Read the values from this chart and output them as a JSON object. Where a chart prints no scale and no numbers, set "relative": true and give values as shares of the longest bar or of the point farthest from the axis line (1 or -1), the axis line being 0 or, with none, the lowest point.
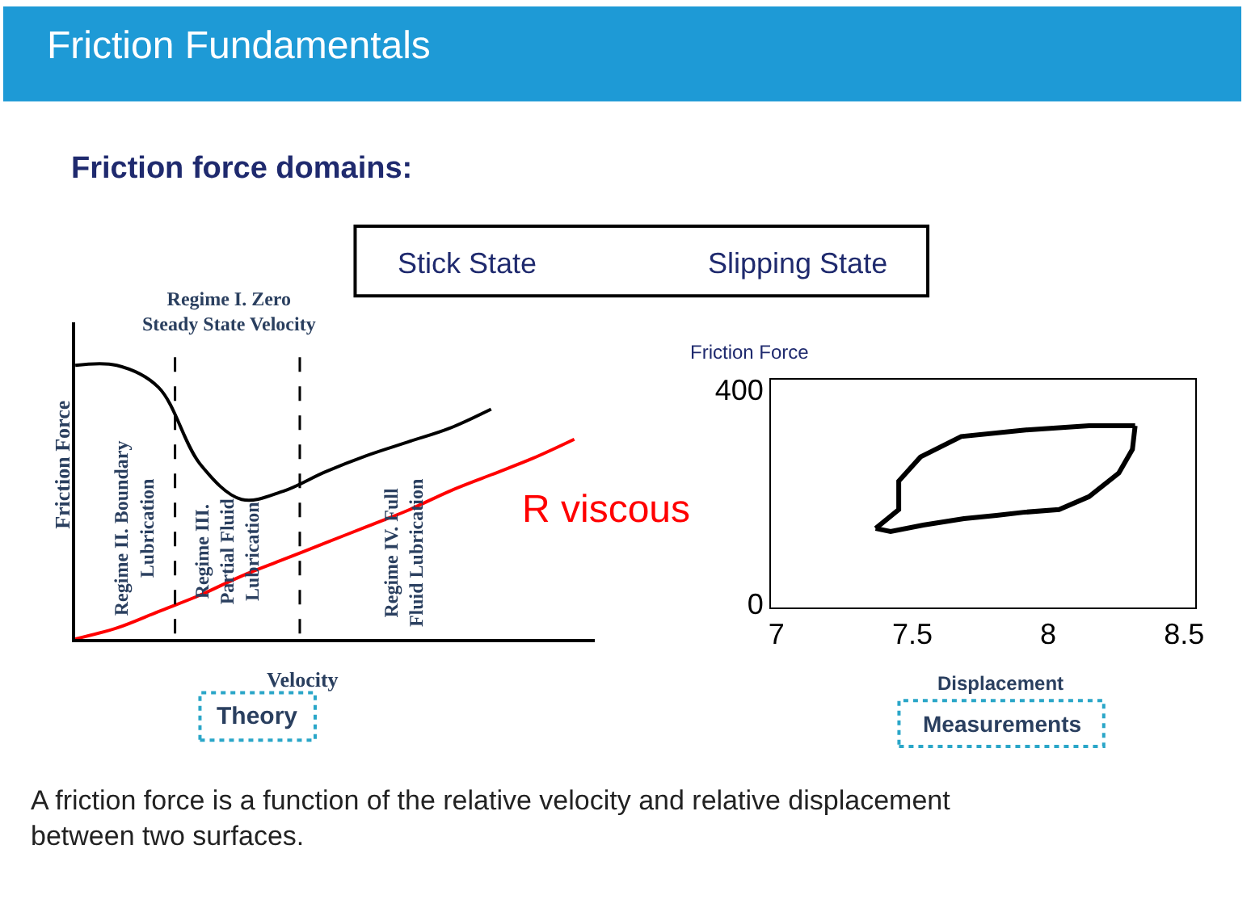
{
  "chart_data": [
    {
      "type": "line",
      "title": "Friction Fundamentals",
      "subtitle": "Friction force domains:",
      "xlabel": "Velocity",
      "ylabel": "Friction Force",
      "relative": true,
      "categories": [
        null,
        null,
        null,
        null,
        null,
        null,
        null,
        null,
        null,
        null,
        null,
        null,
        null
      ],
      "series": [
        {
          "color": "#000000",
          "values": [
            1,
            1,
            0.92,
            0.64,
            0.51,
            0.54,
            0.61,
            0.67,
            0.72,
            0.77,
            0.84,
            null,
            null
          ]
        },
        {
          "name": "R viscous",
          "color": "#ff0000",
          "values": [
            0,
            0.04,
            0.1,
            0.16,
            0.23,
            0.29,
            0.35,
            0.41,
            0.47,
            0.54,
            0.6,
            0.66,
            0.73
          ]
        }
      ],
      "line_style": "solid",
      "annotations": [
        "Regime I. Zero Steady State Velocity",
        "Regime II. Boundary Lubrication",
        "Regime III. Partial Fluid Lubrication",
        "Regime IV. Full Fluid Lubrication",
        "Stick State",
        "Slipping State",
        "Theory",
        "A friction force is a function of the relative velocity and relative displacement between two surfaces."
      ],
      "marker": "none"
    },
    {
      "type": "line",
      "xlabel": "Displacement",
      "ylabel": "Friction Force",
      "series": [
        {
          "color": "#000000",
          "x": [
            7.365,
            7.45,
            7.45,
            7.53,
            7.68,
            7.91,
            8.15,
            8.32
          ],
          "values": [
            141,
            176,
            229,
            274,
            312,
            324,
            332,
            332
          ]
        },
        {
          "color": "#000000",
          "x": [
            8.32,
            8.31,
            8.26,
            8.15,
            8.04,
            7.91,
            7.81,
            7.69,
            7.54,
            7.42,
            7.365
          ],
          "values": [
            332,
            288,
            244,
            200,
            176,
            171,
            165,
            159,
            147,
            135,
            141
          ]
        }
      ],
      "xlim": [
        6.98,
        8.54
      ],
      "ylim": [
        -6,
        418
      ],
      "xticks": [
        7,
        7.5,
        8,
        8.5
      ],
      "yticks": [
        0,
        400
      ],
      "annotations": [
        "Measurements"
      ],
      "marker": "none"
    }
  ]
}
